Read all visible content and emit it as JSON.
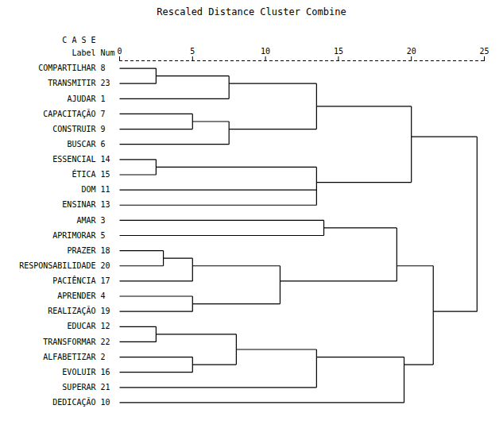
{
  "chart_data": {
    "type": "dendrogram",
    "title": "Rescaled Distance Cluster Combine",
    "annotations": {
      "case": "C A S E",
      "label": "Label",
      "num": "Num"
    },
    "labels": [
      "COMPARTILHAR",
      "TRANSMITIR",
      "AJUDAR",
      "CAPACITAÇÃO",
      "CONSTRUIR",
      "BUSCAR",
      "ESSENCIAL",
      "ÉTICA",
      "DOM",
      "ENSINAR",
      "AMAR",
      "APRIMORAR",
      "PRAZER",
      "RESPONSABILIDADE",
      "PACIÊNCIA",
      "APRENDER",
      "REALIZAÇÃO",
      "EDUCAR",
      "TRANSFORMAR",
      "ALFABETIZAR",
      "EVOLUIR",
      "SUPERAR",
      "DEDICAÇÃO"
    ],
    "nums": [
      8,
      23,
      1,
      7,
      9,
      6,
      14,
      15,
      11,
      13,
      3,
      5,
      18,
      20,
      17,
      4,
      19,
      12,
      22,
      2,
      16,
      21,
      10
    ],
    "tree": {
      "distance": 24.5,
      "children": [
        {
          "distance": 20.0,
          "children": [
            {
              "distance": 13.5,
              "children": [
                {
                  "distance": 7.5,
                  "children": [
                    {
                      "distance": 2.5,
                      "children": [
                        0,
                        1
                      ]
                    },
                    2
                  ]
                },
                {
                  "distance": 7.5,
                  "children": [
                    {
                      "distance": 5.0,
                      "children": [
                        3,
                        4
                      ]
                    },
                    5
                  ]
                }
              ]
            },
            {
              "distance": 13.5,
              "children": [
                {
                  "distance": 2.5,
                  "children": [
                    6,
                    7
                  ]
                },
                8,
                9
              ]
            }
          ]
        },
        {
          "distance": 21.5,
          "children": [
            {
              "distance": 19.0,
              "children": [
                {
                  "distance": 14.0,
                  "children": [
                    10,
                    11
                  ]
                },
                {
                  "distance": 11.0,
                  "children": [
                    {
                      "distance": 5.0,
                      "children": [
                        {
                          "distance": 3.0,
                          "children": [
                            12,
                            13
                          ]
                        },
                        14
                      ]
                    },
                    {
                      "distance": 5.0,
                      "children": [
                        15,
                        16
                      ]
                    }
                  ]
                }
              ]
            },
            {
              "distance": 19.5,
              "children": [
                {
                  "distance": 13.5,
                  "children": [
                    {
                      "distance": 8.0,
                      "children": [
                        {
                          "distance": 2.5,
                          "children": [
                            17,
                            18
                          ]
                        },
                        {
                          "distance": 5.0,
                          "children": [
                            19,
                            20
                          ]
                        }
                      ]
                    },
                    21
                  ]
                },
                22
              ]
            }
          ]
        }
      ]
    },
    "xlim": [
      0,
      25
    ],
    "xticks": [
      0,
      5,
      10,
      15,
      20,
      25
    ],
    "grid": false
  }
}
